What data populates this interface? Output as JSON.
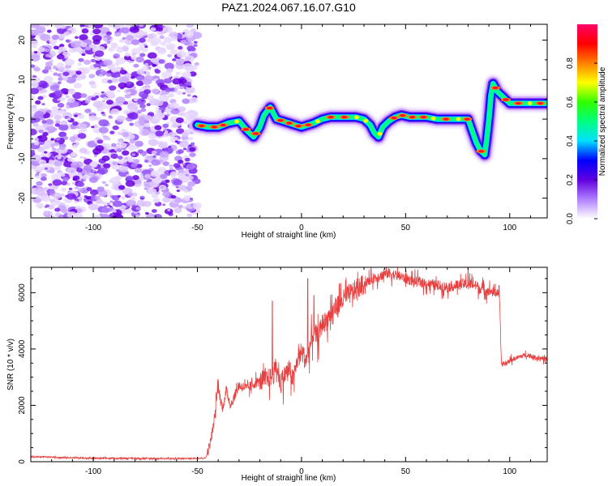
{
  "title": "PAZ1.2024.067.16.07.G10",
  "chart_data": [
    {
      "type": "heatmap",
      "xlabel": "Height of straight line (km)",
      "ylabel": "Frequency (Hz)",
      "xlim": [
        -130,
        118
      ],
      "ylim": [
        -25,
        24
      ],
      "x_ticks": [
        -100,
        -50,
        0,
        50,
        100
      ],
      "y_ticks": [
        -20,
        -10,
        0,
        10,
        20
      ],
      "colorbar": {
        "label": "Normalized spectral amplitude",
        "ticks": [
          "0.0",
          "0.2",
          "0.4",
          "0.6",
          "0.8"
        ],
        "range": [
          0,
          1
        ],
        "colors": [
          "#ffffff",
          "#b080ff",
          "#6000e0",
          "#0000ff",
          "#00e0ff",
          "#00ff80",
          "#30ff00",
          "#ffff00",
          "#ff8000",
          "#ff0000",
          "#ff0066"
        ]
      },
      "noise_region_x": [
        -130,
        -50
      ],
      "ridge": {
        "x": [
          -50,
          -45,
          -40,
          -35,
          -30,
          -26,
          -23,
          -20,
          -18,
          -15,
          -12,
          -9,
          -6,
          -3,
          0,
          3,
          6,
          10,
          14,
          18,
          22,
          26,
          30,
          33,
          35,
          37,
          39,
          42,
          45,
          48,
          52,
          56,
          60,
          65,
          70,
          75,
          80,
          82,
          84,
          86,
          88,
          89,
          90,
          91,
          92,
          94,
          96,
          98,
          100,
          105,
          110,
          118
        ],
        "y": [
          -1.5,
          -2,
          -2,
          -1,
          -0.5,
          -3,
          -4.5,
          -2,
          1,
          3,
          0,
          -0.5,
          -1,
          -1.5,
          -2,
          -1.5,
          -1,
          0,
          0.5,
          0.5,
          0.5,
          0.5,
          0,
          -1.5,
          -3.5,
          -4.5,
          -2,
          -0.5,
          0.5,
          1,
          0.5,
          0.5,
          0.5,
          0,
          0,
          0,
          0,
          -3,
          -6,
          -8,
          -9,
          -5,
          0,
          6,
          9,
          7,
          6,
          5,
          4,
          4,
          4,
          4
        ]
      }
    },
    {
      "type": "line",
      "xlabel": "Height of straight line (km)",
      "ylabel": "SNR (10 * v/v)",
      "xlim": [
        -130,
        118
      ],
      "ylim": [
        0,
        6900
      ],
      "x_ticks": [
        -100,
        -50,
        0,
        50,
        100
      ],
      "y_ticks": [
        0,
        2000,
        4000,
        6000
      ],
      "color": "#e84040",
      "envelope": {
        "x": [
          -130,
          -100,
          -80,
          -60,
          -46,
          -44,
          -42,
          -40,
          -39,
          -38,
          -36,
          -34,
          -30,
          -26,
          -22,
          -18,
          -14,
          -12,
          -10,
          -8,
          -6,
          -4,
          -2,
          0,
          2,
          4,
          6,
          8,
          10,
          12,
          14,
          18,
          22,
          26,
          30,
          34,
          38,
          42,
          46,
          50,
          54,
          58,
          62,
          66,
          70,
          74,
          78,
          82,
          86,
          90,
          94,
          95,
          96,
          97,
          98,
          100,
          104,
          108,
          112,
          118
        ],
        "y": [
          180,
          120,
          120,
          110,
          130,
          600,
          1400,
          2800,
          2200,
          1900,
          2500,
          2000,
          2700,
          2600,
          2800,
          2900,
          3000,
          3400,
          2700,
          3100,
          3300,
          2900,
          3600,
          3900,
          3600,
          4100,
          4600,
          4400,
          4900,
          5000,
          5300,
          5600,
          5900,
          6100,
          6300,
          6500,
          6600,
          6700,
          6600,
          6500,
          6400,
          6350,
          6300,
          6250,
          6200,
          6250,
          6300,
          6300,
          6150,
          6050,
          6000,
          6100,
          3400,
          3500,
          3450,
          3600,
          3700,
          3800,
          3700,
          3650
        ]
      },
      "spikes": [
        {
          "x": -14,
          "y": 5700
        },
        {
          "x": 3,
          "y": 6500
        },
        {
          "x": 6,
          "y": 5900
        },
        {
          "x": 80,
          "y": 6850
        }
      ]
    }
  ]
}
